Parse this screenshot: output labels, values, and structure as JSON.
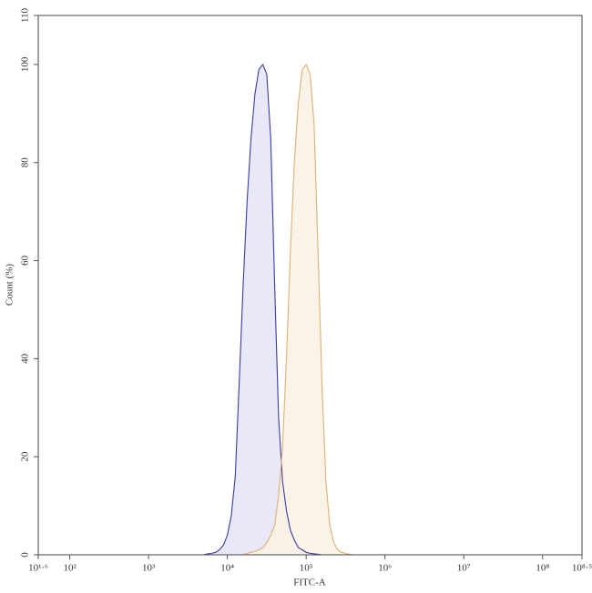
{
  "chart_data": {
    "type": "histogram-overlay",
    "x_label": "FITC-A",
    "y_label": "Count (%)",
    "xscale": "log",
    "xlim": [
      39.8107,
      316227766
    ],
    "ylim": [
      0,
      110
    ],
    "xticks": [
      {
        "value": 39.8107,
        "label": "10¹·⁶"
      },
      {
        "value": 100,
        "label": "10²"
      },
      {
        "value": 1000,
        "label": "10³"
      },
      {
        "value": 10000,
        "label": "10⁴"
      },
      {
        "value": 100000,
        "label": "10⁵"
      },
      {
        "value": 1000000,
        "label": "10⁶"
      },
      {
        "value": 10000000,
        "label": "10⁷"
      },
      {
        "value": 100000000,
        "label": "10⁸"
      },
      {
        "value": 316227766,
        "label": "10⁸·⁵"
      }
    ],
    "yticks": [
      0,
      20,
      40,
      60,
      80,
      100,
      110
    ],
    "x": [
      5012,
      5623,
      6310,
      7079,
      7943,
      8913,
      10000,
      11220,
      12589,
      14125,
      15849,
      17783,
      19953,
      22387,
      25119,
      28184,
      31623,
      35481,
      39811,
      44668,
      50119,
      56234,
      63096,
      70795,
      79433,
      89125,
      100000,
      112202,
      125893,
      141254,
      158489,
      177828,
      199526,
      223872,
      251189,
      281838,
      316228,
      354813,
      398107
    ],
    "series": [
      {
        "color": "#3b3ba6",
        "fill": "#e4e4f8",
        "values": [
          0,
          0.2,
          0.3,
          0.5,
          1,
          2,
          4,
          8,
          16,
          35,
          55,
          72,
          85,
          94,
          99,
          100,
          98,
          85,
          55,
          28,
          15,
          9,
          5,
          3,
          1.5,
          1,
          0.5,
          0.3,
          0.2,
          0.1,
          0,
          0,
          0,
          0,
          0,
          0,
          0,
          0,
          0
        ]
      },
      {
        "color": "#dfb074",
        "fill": "#fcf1e4",
        "values": [
          0,
          0,
          0,
          0,
          0,
          0,
          0,
          0,
          0,
          0,
          0,
          0.3,
          0.5,
          0.7,
          1,
          1.5,
          2.5,
          4,
          6,
          12,
          22,
          40,
          62,
          80,
          92,
          99,
          100,
          98,
          88,
          62,
          35,
          15,
          6,
          2.5,
          1,
          0.5,
          0.3,
          0.1,
          0
        ]
      }
    ]
  }
}
